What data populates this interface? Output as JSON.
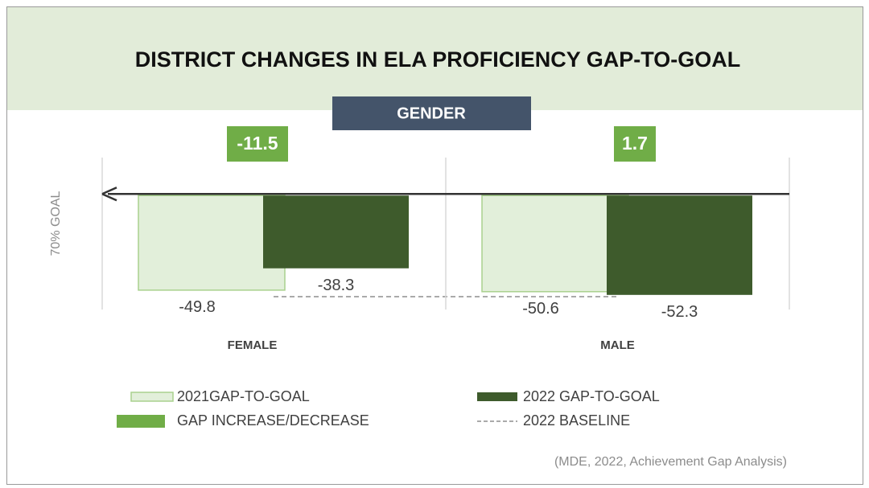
{
  "chart_data": {
    "type": "bar",
    "title": "DISTRICT CHANGES IN ELA PROFICIENCY GAP-TO-GOAL",
    "subtitle": "GENDER",
    "y_label": "70% GOAL",
    "categories": [
      "FEMALE",
      "MALE"
    ],
    "series": [
      {
        "name": "2021GAP-TO-GOAL",
        "color": "#e2efda",
        "stroke": "#a9d18e",
        "values": [
          -49.8,
          -50.6
        ]
      },
      {
        "name": "2022 GAP-TO-GOAL",
        "color": "#3e5b2c",
        "values": [
          -38.3,
          -52.3
        ]
      }
    ],
    "changes": [
      -11.5,
      1.7
    ],
    "change_color": "#70ad47",
    "change_legend": "GAP INCREASE/DECREASE",
    "baseline_legend": "2022 BASELINE",
    "ylim": [
      -60,
      20
    ],
    "source": "(MDE, 2022, Achievement Gap Analysis)"
  }
}
